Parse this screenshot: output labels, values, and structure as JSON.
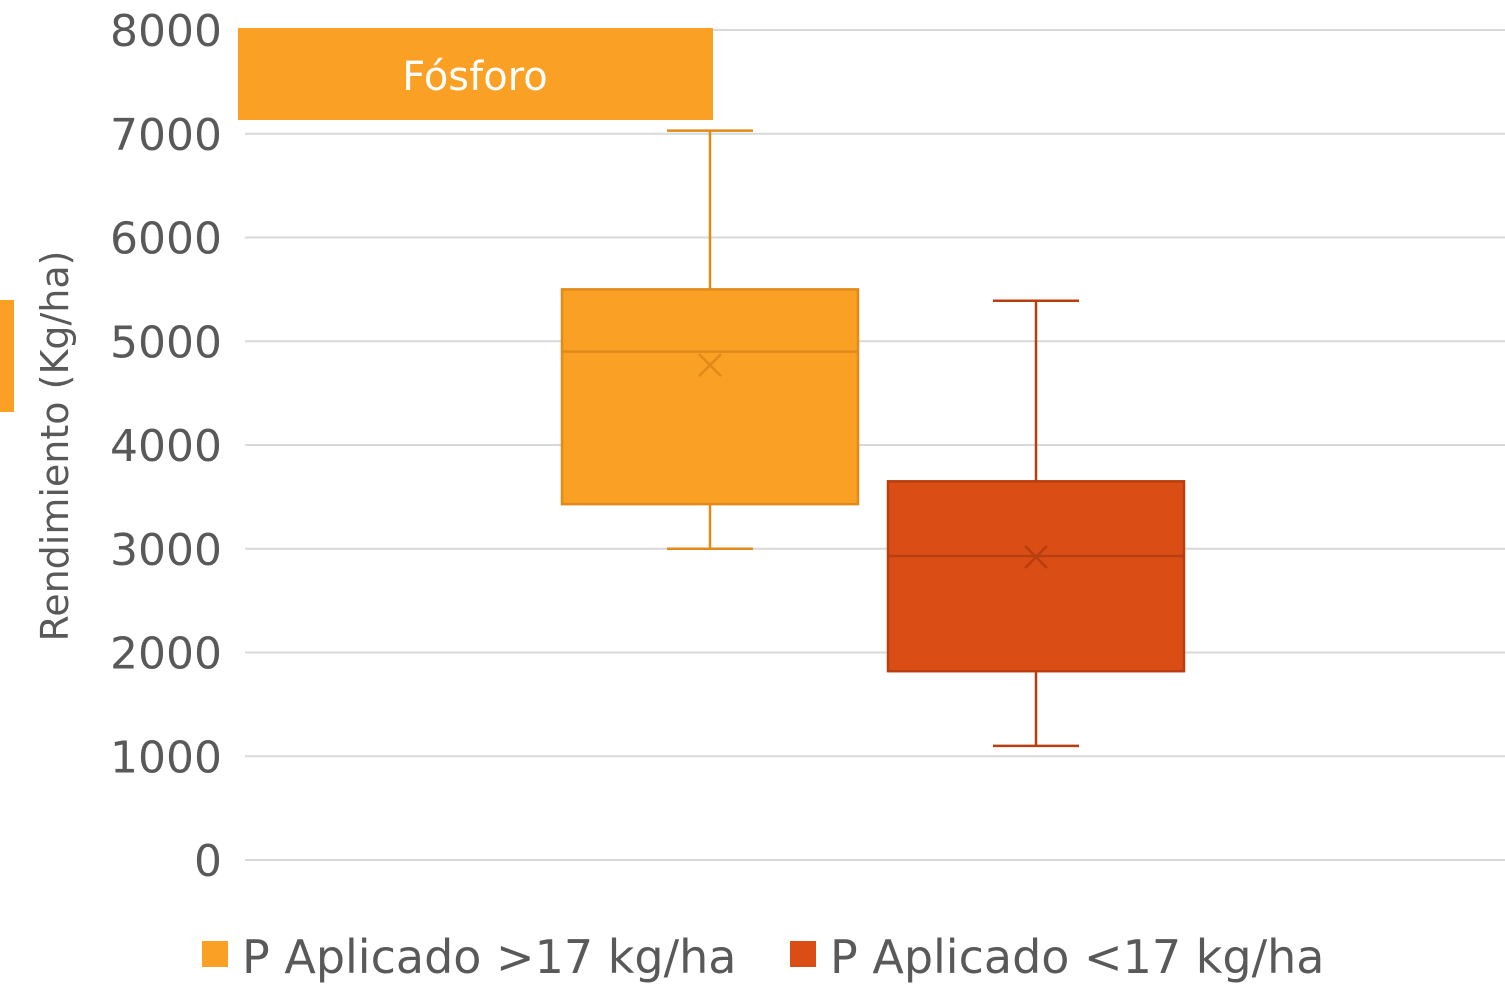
{
  "tag": {
    "label": "Fósforo",
    "color": "#FAA025"
  },
  "chart_data": {
    "type": "boxplot",
    "ylabel": "Rendimiento (Kg/ha)",
    "ylim": [
      0,
      8000
    ],
    "yticks": [
      0,
      1000,
      2000,
      3000,
      4000,
      5000,
      6000,
      7000,
      8000
    ],
    "grid": true,
    "legend_position": "bottom",
    "series": [
      {
        "name": "P Aplicado >17 kg/ha",
        "color": "#FAA025",
        "edge": "#E08A1A",
        "min": 3000,
        "q1": 3430,
        "median": 4900,
        "q3": 5500,
        "max": 7030,
        "mean": 4770
      },
      {
        "name": "P Aplicado <17 kg/ha",
        "color": "#DA4E16",
        "edge": "#B83E10",
        "min": 1100,
        "q1": 1820,
        "median": 2930,
        "q3": 3650,
        "max": 5390,
        "mean": 2920
      }
    ]
  }
}
